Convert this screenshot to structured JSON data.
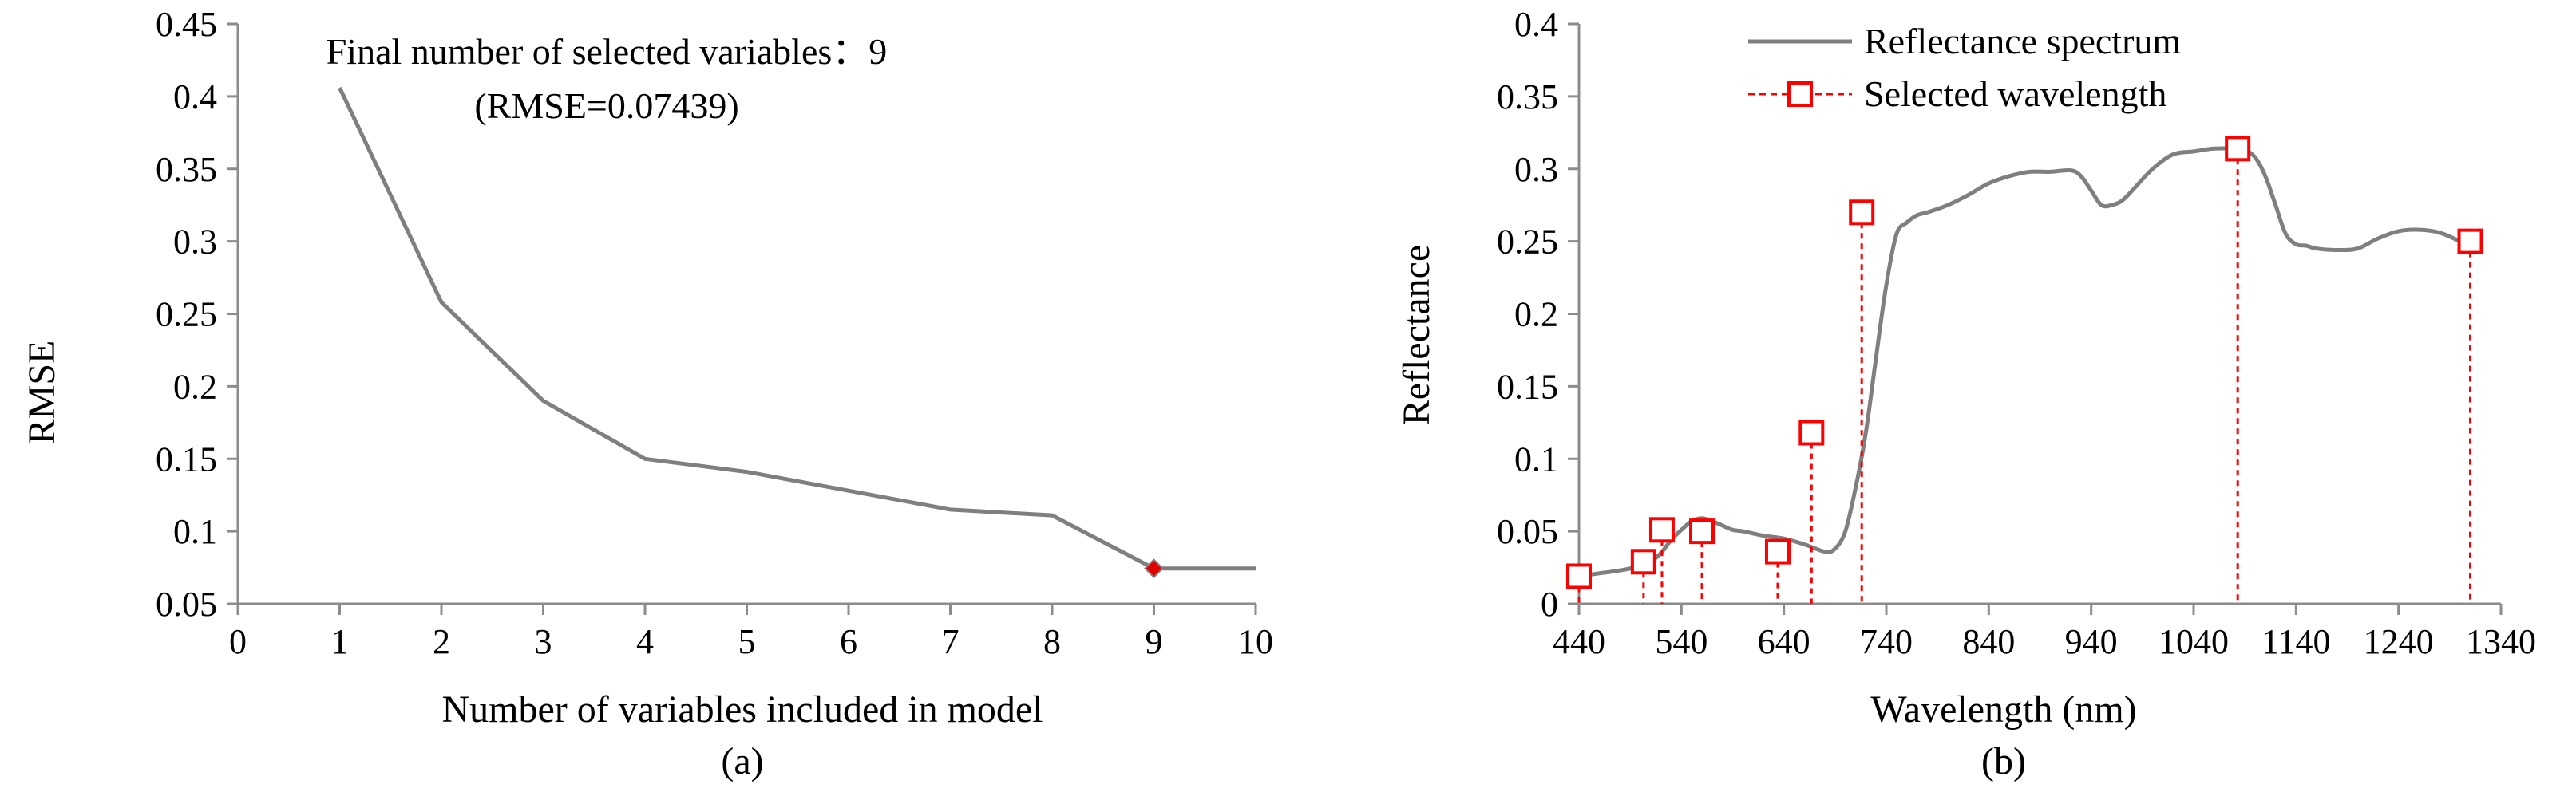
{
  "chart_data": [
    {
      "id": "panel-a",
      "type": "line",
      "title": "Final number of selected variables：9",
      "subtitle": "(RMSE=0.07439)",
      "xlabel": "Number of variables included in model",
      "ylabel": "RMSE",
      "panel_label": "(a)",
      "xlim": [
        0,
        10
      ],
      "ylim": [
        0.05,
        0.45
      ],
      "x_ticks": [
        0,
        1,
        2,
        3,
        4,
        5,
        6,
        7,
        8,
        9,
        10
      ],
      "x_tick_labels": [
        "0",
        "1",
        "2",
        "3",
        "4",
        "5",
        "6",
        "7",
        "8",
        "9",
        "10"
      ],
      "y_ticks": [
        0.05,
        0.1,
        0.15,
        0.2,
        0.25,
        0.3,
        0.35,
        0.4,
        0.45
      ],
      "y_tick_labels": [
        "0.05",
        "0.1",
        "0.15",
        "0.2",
        "0.25",
        "0.3",
        "0.35",
        "0.4",
        "0.45"
      ],
      "grid": false,
      "series": [
        {
          "name": "RMSE",
          "color": "#7f7f7f",
          "x": [
            1,
            2,
            3,
            4,
            5,
            6,
            7,
            8,
            9,
            10
          ],
          "values": [
            0.406,
            0.258,
            0.19,
            0.15,
            0.141,
            0.128,
            0.115,
            0.111,
            0.07439,
            0.07439
          ]
        }
      ],
      "highlight": {
        "x": 9,
        "y": 0.07439,
        "color": "#e00000",
        "marker": "diamond"
      }
    },
    {
      "id": "panel-b",
      "type": "line",
      "xlabel": "Wavelength (nm)",
      "ylabel": "Reflectance",
      "panel_label": "(b)",
      "xlim": [
        440,
        1340
      ],
      "ylim": [
        0,
        0.4
      ],
      "x_ticks": [
        440,
        540,
        640,
        740,
        840,
        940,
        1040,
        1140,
        1240,
        1340
      ],
      "x_tick_labels": [
        "440",
        "540",
        "640",
        "740",
        "840",
        "940",
        "1040",
        "1140",
        "1240",
        "1340"
      ],
      "y_ticks": [
        0,
        0.05,
        0.1,
        0.15,
        0.2,
        0.25,
        0.3,
        0.35,
        0.4
      ],
      "y_tick_labels": [
        "0",
        "0.05",
        "0.1",
        "0.15",
        "0.2",
        "0.25",
        "0.3",
        "0.35",
        "0.4"
      ],
      "grid": false,
      "legend_position": "top-center",
      "legend": [
        "Reflectance spectrum",
        "Selected wavelength"
      ],
      "series": [
        {
          "name": "Reflectance spectrum",
          "color": "#7f7f7f",
          "x": [
            440,
            460,
            480,
            500,
            510,
            520,
            530,
            540,
            550,
            560,
            570,
            580,
            590,
            600,
            620,
            640,
            660,
            680,
            690,
            700,
            710,
            720,
            730,
            740,
            750,
            760,
            770,
            780,
            800,
            820,
            840,
            860,
            880,
            900,
            920,
            930,
            940,
            950,
            960,
            970,
            980,
            1000,
            1020,
            1040,
            1060,
            1080,
            1090,
            1100,
            1110,
            1120,
            1130,
            1140,
            1150,
            1160,
            1180,
            1200,
            1220,
            1240,
            1260,
            1280,
            1300
          ],
          "values": [
            0.019,
            0.021,
            0.023,
            0.026,
            0.029,
            0.035,
            0.044,
            0.051,
            0.057,
            0.059,
            0.057,
            0.054,
            0.051,
            0.05,
            0.047,
            0.045,
            0.041,
            0.036,
            0.038,
            0.05,
            0.08,
            0.118,
            0.17,
            0.22,
            0.255,
            0.263,
            0.268,
            0.27,
            0.275,
            0.282,
            0.29,
            0.295,
            0.298,
            0.298,
            0.299,
            0.295,
            0.285,
            0.275,
            0.275,
            0.278,
            0.285,
            0.3,
            0.31,
            0.312,
            0.314,
            0.314,
            0.313,
            0.308,
            0.295,
            0.275,
            0.255,
            0.248,
            0.247,
            0.245,
            0.244,
            0.245,
            0.252,
            0.257,
            0.258,
            0.256,
            0.25
          ]
        },
        {
          "name": "Selected wavelength",
          "color": "#ff0000",
          "style": "dotted-drop-lines",
          "marker": "square",
          "x": [
            440,
            503,
            521,
            560,
            634,
            667,
            716,
            1083,
            1310
          ],
          "values": [
            0.019,
            0.029,
            0.051,
            0.05,
            0.036,
            0.118,
            0.27,
            0.314,
            0.25
          ]
        }
      ]
    }
  ]
}
